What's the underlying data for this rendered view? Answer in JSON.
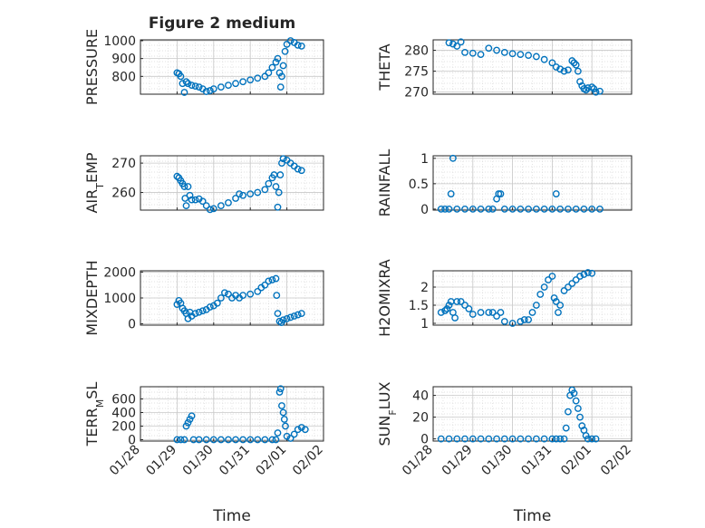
{
  "figure_title": "Figure 2 medium",
  "chart_data": [
    {
      "type": "scatter",
      "ylabel": "PRESSURE",
      "yticks": [
        800,
        900,
        1000
      ],
      "ylim": [
        700,
        1005
      ],
      "xlim": [
        0,
        5
      ],
      "xticks": [
        0,
        1,
        2,
        3,
        4,
        5
      ],
      "xticklabels": [],
      "grid": true,
      "points": [
        [
          1.0,
          820
        ],
        [
          1.05,
          815
        ],
        [
          1.1,
          800
        ],
        [
          1.15,
          760
        ],
        [
          1.2,
          710
        ],
        [
          1.25,
          770
        ],
        [
          1.3,
          760
        ],
        [
          1.4,
          750
        ],
        [
          1.5,
          745
        ],
        [
          1.6,
          740
        ],
        [
          1.7,
          730
        ],
        [
          1.8,
          715
        ],
        [
          1.9,
          720
        ],
        [
          2.0,
          730
        ],
        [
          2.2,
          740
        ],
        [
          2.4,
          750
        ],
        [
          2.6,
          760
        ],
        [
          2.8,
          770
        ],
        [
          3.0,
          780
        ],
        [
          3.2,
          790
        ],
        [
          3.4,
          800
        ],
        [
          3.5,
          820
        ],
        [
          3.6,
          850
        ],
        [
          3.7,
          880
        ],
        [
          3.75,
          900
        ],
        [
          3.8,
          820
        ],
        [
          3.83,
          740
        ],
        [
          3.86,
          800
        ],
        [
          3.9,
          860
        ],
        [
          3.95,
          940
        ],
        [
          4.0,
          980
        ],
        [
          4.1,
          1000
        ],
        [
          4.2,
          990
        ],
        [
          4.3,
          975
        ],
        [
          4.4,
          970
        ]
      ],
      "marker": "open-circle",
      "color": "#0072BD"
    },
    {
      "type": "scatter",
      "ylabel": "THETA",
      "yticks": [
        270,
        275,
        280
      ],
      "ylim": [
        269.5,
        282.5
      ],
      "xlim": [
        0,
        5
      ],
      "xticks": [
        0,
        1,
        2,
        3,
        4,
        5
      ],
      "xticklabels": [],
      "grid": true,
      "points": [
        [
          0.4,
          281.8
        ],
        [
          0.5,
          281.5
        ],
        [
          0.6,
          281.0
        ],
        [
          0.7,
          282.0
        ],
        [
          0.8,
          279.5
        ],
        [
          1.0,
          279.3
        ],
        [
          1.2,
          279.0
        ],
        [
          1.4,
          280.5
        ],
        [
          1.6,
          280.0
        ],
        [
          1.8,
          279.5
        ],
        [
          2.0,
          279.2
        ],
        [
          2.2,
          279.0
        ],
        [
          2.4,
          278.8
        ],
        [
          2.6,
          278.5
        ],
        [
          2.8,
          277.8
        ],
        [
          3.0,
          277.0
        ],
        [
          3.1,
          276.0
        ],
        [
          3.2,
          275.5
        ],
        [
          3.3,
          275.0
        ],
        [
          3.4,
          275.3
        ],
        [
          3.5,
          277.5
        ],
        [
          3.55,
          277.0
        ],
        [
          3.6,
          276.5
        ],
        [
          3.65,
          275.0
        ],
        [
          3.7,
          272.5
        ],
        [
          3.75,
          271.5
        ],
        [
          3.8,
          270.8
        ],
        [
          3.85,
          270.5
        ],
        [
          3.9,
          271.0
        ],
        [
          4.0,
          271.2
        ],
        [
          4.05,
          270.8
        ],
        [
          4.1,
          270.0
        ],
        [
          4.2,
          270.2
        ]
      ],
      "marker": "open-circle",
      "color": "#0072BD"
    },
    {
      "type": "scatter",
      "ylabel": "AIR_TEMP",
      "yticks": [
        260,
        270
      ],
      "ylim": [
        254,
        272.5
      ],
      "xlim": [
        0,
        5
      ],
      "xticks": [
        0,
        1,
        2,
        3,
        4,
        5
      ],
      "xticklabels": [],
      "grid": true,
      "points": [
        [
          1.0,
          265.5
        ],
        [
          1.05,
          265
        ],
        [
          1.1,
          264
        ],
        [
          1.15,
          263
        ],
        [
          1.2,
          262
        ],
        [
          1.22,
          258
        ],
        [
          1.25,
          255.5
        ],
        [
          1.3,
          262
        ],
        [
          1.35,
          259
        ],
        [
          1.4,
          257.5
        ],
        [
          1.5,
          257.5
        ],
        [
          1.6,
          257.8
        ],
        [
          1.7,
          257
        ],
        [
          1.8,
          255.5
        ],
        [
          1.9,
          254.2
        ],
        [
          2.0,
          254.5
        ],
        [
          2.2,
          255.5
        ],
        [
          2.4,
          256.5
        ],
        [
          2.6,
          258
        ],
        [
          2.7,
          259.5
        ],
        [
          2.8,
          259
        ],
        [
          3.0,
          259.5
        ],
        [
          3.2,
          260
        ],
        [
          3.4,
          261
        ],
        [
          3.5,
          263
        ],
        [
          3.6,
          265
        ],
        [
          3.65,
          266
        ],
        [
          3.7,
          262
        ],
        [
          3.75,
          255
        ],
        [
          3.78,
          260
        ],
        [
          3.82,
          266
        ],
        [
          3.86,
          270
        ],
        [
          3.9,
          271.5
        ],
        [
          4.0,
          271
        ],
        [
          4.1,
          270
        ],
        [
          4.2,
          269
        ],
        [
          4.3,
          268
        ],
        [
          4.4,
          267.5
        ]
      ],
      "marker": "open-circle",
      "color": "#0072BD"
    },
    {
      "type": "scatter",
      "ylabel": "RAINFALL",
      "yticks": [
        0,
        0.5,
        1
      ],
      "ylim": [
        -0.02,
        1.05
      ],
      "xlim": [
        0,
        5
      ],
      "xticks": [
        0,
        1,
        2,
        3,
        4,
        5
      ],
      "xticklabels": [],
      "grid": true,
      "points": [
        [
          0.2,
          0
        ],
        [
          0.3,
          0
        ],
        [
          0.4,
          0
        ],
        [
          0.45,
          0.3
        ],
        [
          0.5,
          1.0
        ],
        [
          0.6,
          0
        ],
        [
          0.8,
          0
        ],
        [
          1.0,
          0
        ],
        [
          1.2,
          0
        ],
        [
          1.4,
          0
        ],
        [
          1.5,
          0
        ],
        [
          1.6,
          0.2
        ],
        [
          1.65,
          0.3
        ],
        [
          1.7,
          0.3
        ],
        [
          1.8,
          0
        ],
        [
          2.0,
          0
        ],
        [
          2.2,
          0
        ],
        [
          2.4,
          0
        ],
        [
          2.6,
          0
        ],
        [
          2.8,
          0
        ],
        [
          3.0,
          0
        ],
        [
          3.1,
          0.3
        ],
        [
          3.2,
          0
        ],
        [
          3.4,
          0
        ],
        [
          3.6,
          0
        ],
        [
          3.8,
          0
        ],
        [
          4.0,
          0
        ],
        [
          4.2,
          0
        ]
      ],
      "marker": "open-circle",
      "color": "#0072BD"
    },
    {
      "type": "scatter",
      "ylabel": "MIXDEPTH",
      "yticks": [
        0,
        1000,
        2000
      ],
      "ylim": [
        -50,
        2050
      ],
      "xlim": [
        0,
        5
      ],
      "xticks": [
        0,
        1,
        2,
        3,
        4,
        5
      ],
      "xticklabels": [],
      "grid": true,
      "points": [
        [
          1.0,
          750
        ],
        [
          1.05,
          900
        ],
        [
          1.1,
          800
        ],
        [
          1.15,
          600
        ],
        [
          1.2,
          500
        ],
        [
          1.25,
          400
        ],
        [
          1.3,
          200
        ],
        [
          1.35,
          450
        ],
        [
          1.4,
          300
        ],
        [
          1.5,
          400
        ],
        [
          1.6,
          450
        ],
        [
          1.7,
          500
        ],
        [
          1.8,
          550
        ],
        [
          1.9,
          650
        ],
        [
          2.0,
          700
        ],
        [
          2.1,
          800
        ],
        [
          2.2,
          1000
        ],
        [
          2.3,
          1200
        ],
        [
          2.4,
          1150
        ],
        [
          2.5,
          1000
        ],
        [
          2.6,
          1100
        ],
        [
          2.7,
          1000
        ],
        [
          2.8,
          1100
        ],
        [
          3.0,
          1150
        ],
        [
          3.2,
          1250
        ],
        [
          3.3,
          1400
        ],
        [
          3.4,
          1500
        ],
        [
          3.5,
          1650
        ],
        [
          3.6,
          1700
        ],
        [
          3.7,
          1750
        ],
        [
          3.72,
          1100
        ],
        [
          3.75,
          400
        ],
        [
          3.8,
          100
        ],
        [
          3.85,
          50
        ],
        [
          3.9,
          150
        ],
        [
          4.0,
          200
        ],
        [
          4.1,
          250
        ],
        [
          4.2,
          300
        ],
        [
          4.3,
          350
        ],
        [
          4.4,
          400
        ]
      ],
      "marker": "open-circle",
      "color": "#0072BD"
    },
    {
      "type": "scatter",
      "ylabel": "H2OMIXRA",
      "yticks": [
        1,
        1.5,
        2
      ],
      "ylim": [
        0.95,
        2.45
      ],
      "xlim": [
        0,
        5
      ],
      "xticks": [
        0,
        1,
        2,
        3,
        4,
        5
      ],
      "xticklabels": [],
      "grid": true,
      "points": [
        [
          0.2,
          1.3
        ],
        [
          0.3,
          1.35
        ],
        [
          0.35,
          1.4
        ],
        [
          0.4,
          1.5
        ],
        [
          0.45,
          1.6
        ],
        [
          0.5,
          1.3
        ],
        [
          0.55,
          1.15
        ],
        [
          0.6,
          1.6
        ],
        [
          0.7,
          1.6
        ],
        [
          0.8,
          1.5
        ],
        [
          0.9,
          1.4
        ],
        [
          1.0,
          1.25
        ],
        [
          1.2,
          1.3
        ],
        [
          1.4,
          1.3
        ],
        [
          1.5,
          1.3
        ],
        [
          1.6,
          1.2
        ],
        [
          1.7,
          1.3
        ],
        [
          1.8,
          1.05
        ],
        [
          2.0,
          1.0
        ],
        [
          2.2,
          1.05
        ],
        [
          2.3,
          1.1
        ],
        [
          2.4,
          1.1
        ],
        [
          2.5,
          1.3
        ],
        [
          2.6,
          1.5
        ],
        [
          2.7,
          1.8
        ],
        [
          2.8,
          2.0
        ],
        [
          2.9,
          2.2
        ],
        [
          3.0,
          2.3
        ],
        [
          3.05,
          1.7
        ],
        [
          3.1,
          1.6
        ],
        [
          3.15,
          1.3
        ],
        [
          3.2,
          1.5
        ],
        [
          3.3,
          1.9
        ],
        [
          3.4,
          2.0
        ],
        [
          3.5,
          2.1
        ],
        [
          3.6,
          2.2
        ],
        [
          3.7,
          2.3
        ],
        [
          3.8,
          2.35
        ],
        [
          3.9,
          2.4
        ],
        [
          4.0,
          2.38
        ]
      ],
      "marker": "open-circle",
      "color": "#0072BD"
    },
    {
      "type": "scatter",
      "ylabel": "TERR_MSL",
      "yticks": [
        0,
        200,
        400,
        600
      ],
      "ylim": [
        -20,
        780
      ],
      "xlim": [
        0,
        5
      ],
      "xticks": [
        0,
        1,
        2,
        3,
        4,
        5
      ],
      "xticklabels": [
        "01/28",
        "01/29",
        "01/30",
        "01/31",
        "02/01",
        "02/02"
      ],
      "xlabel": "Time",
      "grid": true,
      "points": [
        [
          1.0,
          0
        ],
        [
          1.1,
          0
        ],
        [
          1.2,
          0
        ],
        [
          1.25,
          200
        ],
        [
          1.3,
          250
        ],
        [
          1.35,
          300
        ],
        [
          1.4,
          350
        ],
        [
          1.45,
          0
        ],
        [
          1.6,
          0
        ],
        [
          1.8,
          0
        ],
        [
          2.0,
          0
        ],
        [
          2.2,
          0
        ],
        [
          2.4,
          0
        ],
        [
          2.6,
          0
        ],
        [
          2.8,
          0
        ],
        [
          3.0,
          0
        ],
        [
          3.2,
          0
        ],
        [
          3.4,
          0
        ],
        [
          3.6,
          0
        ],
        [
          3.7,
          0
        ],
        [
          3.75,
          100
        ],
        [
          3.8,
          700
        ],
        [
          3.83,
          750
        ],
        [
          3.86,
          500
        ],
        [
          3.9,
          400
        ],
        [
          3.93,
          300
        ],
        [
          3.96,
          200
        ],
        [
          4.0,
          50
        ],
        [
          4.1,
          20
        ],
        [
          4.2,
          80
        ],
        [
          4.3,
          150
        ],
        [
          4.4,
          180
        ],
        [
          4.5,
          150
        ]
      ],
      "marker": "open-circle",
      "color": "#0072BD"
    },
    {
      "type": "scatter",
      "ylabel": "SUN_FLUX",
      "yticks": [
        0,
        20,
        40
      ],
      "ylim": [
        -2,
        48
      ],
      "xlim": [
        0,
        5
      ],
      "xticks": [
        0,
        1,
        2,
        3,
        4,
        5
      ],
      "xticklabels": [
        "01/28",
        "01/29",
        "01/30",
        "01/31",
        "02/01",
        "02/02"
      ],
      "xlabel": "Time",
      "grid": true,
      "points": [
        [
          0.2,
          0
        ],
        [
          0.4,
          0
        ],
        [
          0.6,
          0
        ],
        [
          0.8,
          0
        ],
        [
          1.0,
          0
        ],
        [
          1.2,
          0
        ],
        [
          1.4,
          0
        ],
        [
          1.6,
          0
        ],
        [
          1.8,
          0
        ],
        [
          2.0,
          0
        ],
        [
          2.2,
          0
        ],
        [
          2.4,
          0
        ],
        [
          2.6,
          0
        ],
        [
          2.8,
          0
        ],
        [
          3.0,
          0
        ],
        [
          3.1,
          0
        ],
        [
          3.2,
          0
        ],
        [
          3.3,
          0
        ],
        [
          3.35,
          10
        ],
        [
          3.4,
          25
        ],
        [
          3.45,
          40
        ],
        [
          3.5,
          45
        ],
        [
          3.55,
          42
        ],
        [
          3.6,
          35
        ],
        [
          3.65,
          28
        ],
        [
          3.7,
          20
        ],
        [
          3.75,
          12
        ],
        [
          3.8,
          8
        ],
        [
          3.85,
          3
        ],
        [
          3.9,
          0
        ],
        [
          4.0,
          0
        ],
        [
          4.1,
          0
        ]
      ],
      "marker": "open-circle",
      "color": "#0072BD"
    }
  ]
}
